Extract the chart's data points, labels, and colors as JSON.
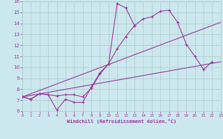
{
  "bg_color": "#cce8ee",
  "line_color": "#993399",
  "grid_color": "#aacccc",
  "xlabel": "Windchill (Refroidissement éolien,°C)",
  "xlim": [
    0,
    23
  ],
  "ylim": [
    6,
    16
  ],
  "xticks": [
    0,
    1,
    2,
    3,
    4,
    5,
    6,
    7,
    8,
    9,
    10,
    11,
    12,
    13,
    14,
    15,
    16,
    17,
    18,
    19,
    20,
    21,
    22,
    23
  ],
  "yticks": [
    6,
    7,
    8,
    9,
    10,
    11,
    12,
    13,
    14,
    15,
    16
  ],
  "line1_x": [
    0,
    1,
    2,
    3,
    4,
    5,
    6,
    7,
    8,
    9,
    10,
    11,
    12,
    13,
    14,
    15,
    16,
    17,
    18,
    19,
    20,
    21,
    22
  ],
  "line1_y": [
    7.3,
    7.1,
    7.6,
    7.5,
    6.1,
    7.1,
    6.8,
    6.8,
    8.2,
    9.5,
    10.3,
    11.7,
    12.8,
    13.8,
    14.4,
    14.6,
    15.1,
    15.2,
    14.1,
    12.1,
    11.0,
    9.8,
    10.5
  ],
  "line2_x": [
    0,
    1,
    2,
    3,
    4,
    5,
    6,
    7,
    8,
    9,
    10,
    11,
    12,
    13
  ],
  "line2_y": [
    7.3,
    7.1,
    7.6,
    7.5,
    7.4,
    7.5,
    7.5,
    7.3,
    8.1,
    9.4,
    10.3,
    15.8,
    15.4,
    13.8
  ],
  "line3_x": [
    0,
    23
  ],
  "line3_y": [
    7.3,
    10.5
  ],
  "line4_x": [
    0,
    23
  ],
  "line4_y": [
    7.3,
    14.1
  ]
}
